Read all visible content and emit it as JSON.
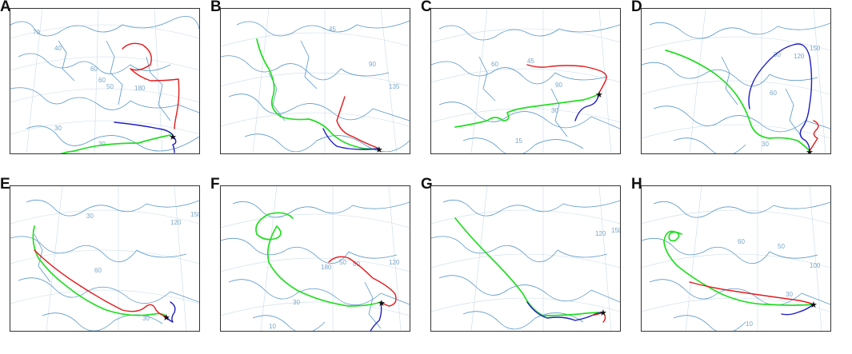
{
  "colors": {
    "red_track": "#e31a1c",
    "blue_track": "#1f1fbf",
    "green_track": "#22dd22",
    "coastline": "#5a98c8",
    "graticule": "#c9dbe9",
    "grid_label": "#7aa6c8"
  },
  "origin_marker": "★",
  "panels": [
    {
      "letter": "A",
      "grid_labels": [
        "70",
        "40",
        "60",
        "50",
        "60",
        "30",
        "180",
        "30"
      ]
    },
    {
      "letter": "B",
      "grid_labels": [
        "45",
        "90",
        "135"
      ]
    },
    {
      "letter": "C",
      "grid_labels": [
        "60",
        "45",
        "90",
        "30",
        "15"
      ]
    },
    {
      "letter": "D",
      "grid_labels": [
        "150",
        "120",
        "90",
        "60",
        "30"
      ]
    },
    {
      "letter": "E",
      "grid_labels": [
        "30",
        "120",
        "150",
        "60",
        "30"
      ]
    },
    {
      "letter": "F",
      "grid_labels": [
        "50",
        "80",
        "120",
        "30",
        "180",
        "10"
      ]
    },
    {
      "letter": "G",
      "grid_labels": [
        "120",
        "150"
      ]
    },
    {
      "letter": "H",
      "grid_labels": [
        "50",
        "60",
        "100",
        "30",
        "10"
      ]
    }
  ]
}
